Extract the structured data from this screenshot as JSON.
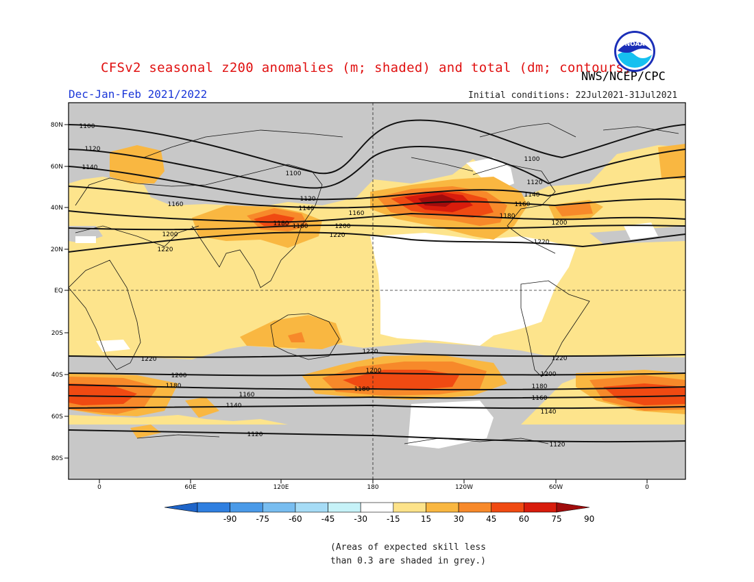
{
  "header": {
    "title": "CFSv2 seasonal z200 anomalies (m; shaded) and total (dm; contours)",
    "agency": "NWS/NCEP/CPC",
    "season": "Dec-Jan-Feb 2021/2022",
    "initial_conditions": "Initial conditions: 22Jul2021-31Jul2021",
    "logo_text": "NOAA"
  },
  "map": {
    "lat_labels": [
      "80N",
      "60N",
      "40N",
      "20N",
      "EQ",
      "20S",
      "40S",
      "60S",
      "80S"
    ],
    "lon_labels": [
      "0",
      "60E",
      "120E",
      "180",
      "120W",
      "60W",
      "0"
    ],
    "contour_labels": [
      {
        "v": "1100"
      },
      {
        "v": "1120"
      },
      {
        "v": "1140"
      },
      {
        "v": "1160"
      },
      {
        "v": "1180"
      },
      {
        "v": "1200"
      },
      {
        "v": "1220"
      },
      {
        "v": "1100"
      },
      {
        "v": "1120"
      },
      {
        "v": "1140"
      },
      {
        "v": "1160"
      },
      {
        "v": "1180"
      },
      {
        "v": "1200"
      },
      {
        "v": "1220"
      },
      {
        "v": "1100"
      },
      {
        "v": "1120"
      },
      {
        "v": "1140"
      },
      {
        "v": "1160"
      },
      {
        "v": "1180"
      },
      {
        "v": "1200"
      },
      {
        "v": "1220"
      },
      {
        "v": "1220"
      },
      {
        "v": "1200"
      },
      {
        "v": "1180"
      },
      {
        "v": "1160"
      },
      {
        "v": "1140"
      },
      {
        "v": "1120"
      },
      {
        "v": "1220"
      },
      {
        "v": "1200"
      },
      {
        "v": "1180"
      },
      {
        "v": "1220"
      },
      {
        "v": "1200"
      },
      {
        "v": "1180"
      },
      {
        "v": "1160"
      },
      {
        "v": "1140"
      },
      {
        "v": "1120"
      }
    ]
  },
  "colorbar": {
    "labels": [
      "-90",
      "-75",
      "-60",
      "-45",
      "-30",
      "-15",
      "15",
      "30",
      "45",
      "60",
      "75",
      "90"
    ],
    "colors": [
      "#1e64c8",
      "#2f7fe0",
      "#4a9ae8",
      "#78bdf0",
      "#a6dcf6",
      "#c6f2f8",
      "#ffffff",
      "#fde38a",
      "#f9b741",
      "#f7892a",
      "#f04a12",
      "#d81c0c",
      "#a00c0c"
    ]
  },
  "footnote": {
    "line1": "(Areas of expected skill less",
    "line2": "than 0.3 are shaded in grey.)"
  }
}
